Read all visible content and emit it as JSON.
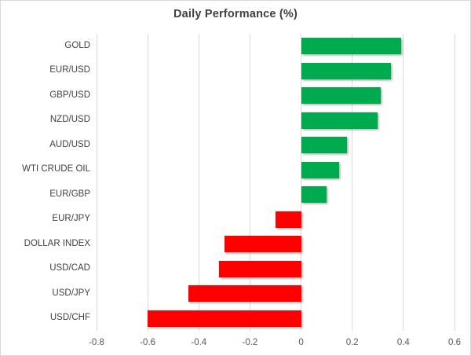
{
  "chart_data": {
    "type": "bar",
    "orientation": "horizontal",
    "title": "Daily Performance (%)",
    "categories": [
      "GOLD",
      "EUR/USD",
      "GBP/USD",
      "NZD/USD",
      "AUD/USD",
      "WTI CRUDE OIL",
      "EUR/GBP",
      "EUR/JPY",
      "DOLLAR INDEX",
      "USD/CAD",
      "USD/JPY",
      "USD/CHF"
    ],
    "values": [
      0.39,
      0.35,
      0.31,
      0.3,
      0.18,
      0.15,
      0.1,
      -0.1,
      -0.3,
      -0.32,
      -0.44,
      -0.6
    ],
    "xlim": [
      -0.8,
      0.6
    ],
    "xticks": [
      -0.8,
      -0.6,
      -0.4,
      -0.2,
      0,
      0.2,
      0.4,
      0.6
    ],
    "xtick_labels": [
      "-0.8",
      "-0.6",
      "-0.4",
      "-0.2",
      "0",
      "0.2",
      "0.4",
      "0.6"
    ],
    "xlabel": "",
    "ylabel": "",
    "grid": "vertical",
    "legend": "none",
    "colors": {
      "positive_bar": "#00AB50",
      "negative_bar": "#FF0000",
      "gridline": "#D9D9D9",
      "border": "#D9D9D9",
      "title_text": "#404040",
      "category_text": "#404040",
      "axis_text": "#595959"
    }
  }
}
